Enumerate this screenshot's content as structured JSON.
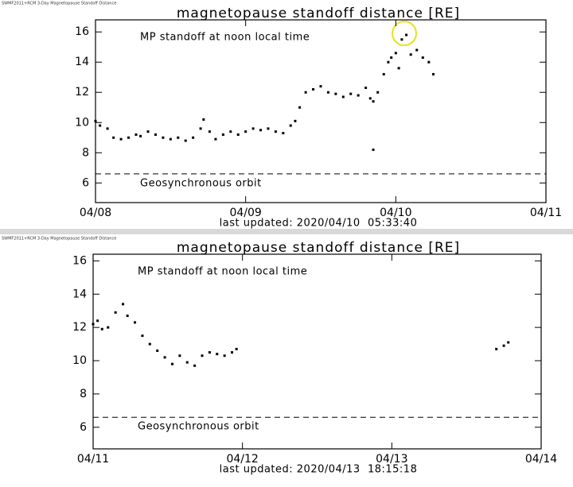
{
  "chart_data": [
    {
      "type": "scatter",
      "window_title": "SWMF2011+RCM 3-Day Magnetopause Standoff Distance",
      "title": "magnetopause standoff distance [RE]",
      "annotation": "MP standoff at noon local time",
      "reference_label": "Geosynchronous orbit",
      "reference_value": 6.6,
      "footer": "last updated: 2020/04/10  05:33:40",
      "color": "#000000",
      "xlim": [
        0,
        3
      ],
      "xticks": [
        {
          "value": 0,
          "label": "04/08"
        },
        {
          "value": 1,
          "label": "04/09"
        },
        {
          "value": 2,
          "label": "04/10"
        },
        {
          "value": 3,
          "label": "04/11"
        }
      ],
      "ylim": [
        4.7,
        16.8
      ],
      "yticks": [
        6,
        8,
        10,
        12,
        14,
        16
      ],
      "x": [
        0.0,
        0.03,
        0.08,
        0.12,
        0.17,
        0.22,
        0.27,
        0.3,
        0.35,
        0.4,
        0.45,
        0.5,
        0.55,
        0.6,
        0.65,
        0.7,
        0.72,
        0.76,
        0.8,
        0.85,
        0.9,
        0.95,
        1.0,
        1.05,
        1.1,
        1.15,
        1.2,
        1.25,
        1.3,
        1.33,
        1.36,
        1.4,
        1.45,
        1.5,
        1.55,
        1.6,
        1.65,
        1.7,
        1.75,
        1.8,
        1.83,
        1.85,
        1.85,
        1.88,
        1.92,
        1.95,
        1.97,
        2.0,
        2.02,
        2.04,
        2.07,
        2.1,
        2.14,
        2.18,
        2.22,
        2.25
      ],
      "values": [
        10.1,
        9.8,
        9.6,
        9.0,
        8.9,
        9.0,
        9.2,
        9.1,
        9.4,
        9.2,
        9.0,
        8.9,
        9.0,
        8.8,
        9.0,
        9.6,
        10.2,
        9.4,
        8.9,
        9.2,
        9.4,
        9.2,
        9.4,
        9.6,
        9.5,
        9.6,
        9.4,
        9.3,
        9.8,
        10.1,
        11.0,
        12.0,
        12.2,
        12.4,
        12.0,
        11.9,
        11.7,
        11.9,
        11.8,
        12.3,
        11.6,
        11.4,
        8.2,
        12.0,
        13.2,
        14.0,
        14.3,
        14.6,
        13.6,
        15.5,
        15.8,
        14.5,
        14.8,
        14.3,
        14.0,
        13.2
      ]
    },
    {
      "type": "scatter",
      "window_title": "SWMF2011+RCM 3-Day Magnetopause Standoff Distance",
      "title": "magnetopause standoff distance [RE]",
      "annotation": "MP standoff at noon local time",
      "reference_label": "Geosynchronous orbit",
      "reference_value": 6.6,
      "footer": "last updated: 2020/04/13  18:15:18",
      "color": "#000000",
      "xlim": [
        0,
        3
      ],
      "xticks": [
        {
          "value": 0,
          "label": "04/11"
        },
        {
          "value": 1,
          "label": "04/12"
        },
        {
          "value": 2,
          "label": "04/13"
        },
        {
          "value": 3,
          "label": "04/14"
        }
      ],
      "ylim": [
        4.7,
        16.4
      ],
      "yticks": [
        6,
        8,
        10,
        12,
        14,
        16
      ],
      "x": [
        0.0,
        0.03,
        0.06,
        0.1,
        0.15,
        0.2,
        0.23,
        0.28,
        0.33,
        0.38,
        0.43,
        0.48,
        0.53,
        0.58,
        0.63,
        0.68,
        0.73,
        0.78,
        0.83,
        0.88,
        0.93,
        0.96,
        2.7,
        2.75,
        2.78
      ],
      "values": [
        12.2,
        12.4,
        11.9,
        12.0,
        12.9,
        13.4,
        12.7,
        12.3,
        11.5,
        11.0,
        10.6,
        10.2,
        9.8,
        10.3,
        9.9,
        9.7,
        10.3,
        10.5,
        10.4,
        10.3,
        10.5,
        10.7,
        10.7,
        10.9,
        11.1
      ]
    }
  ]
}
